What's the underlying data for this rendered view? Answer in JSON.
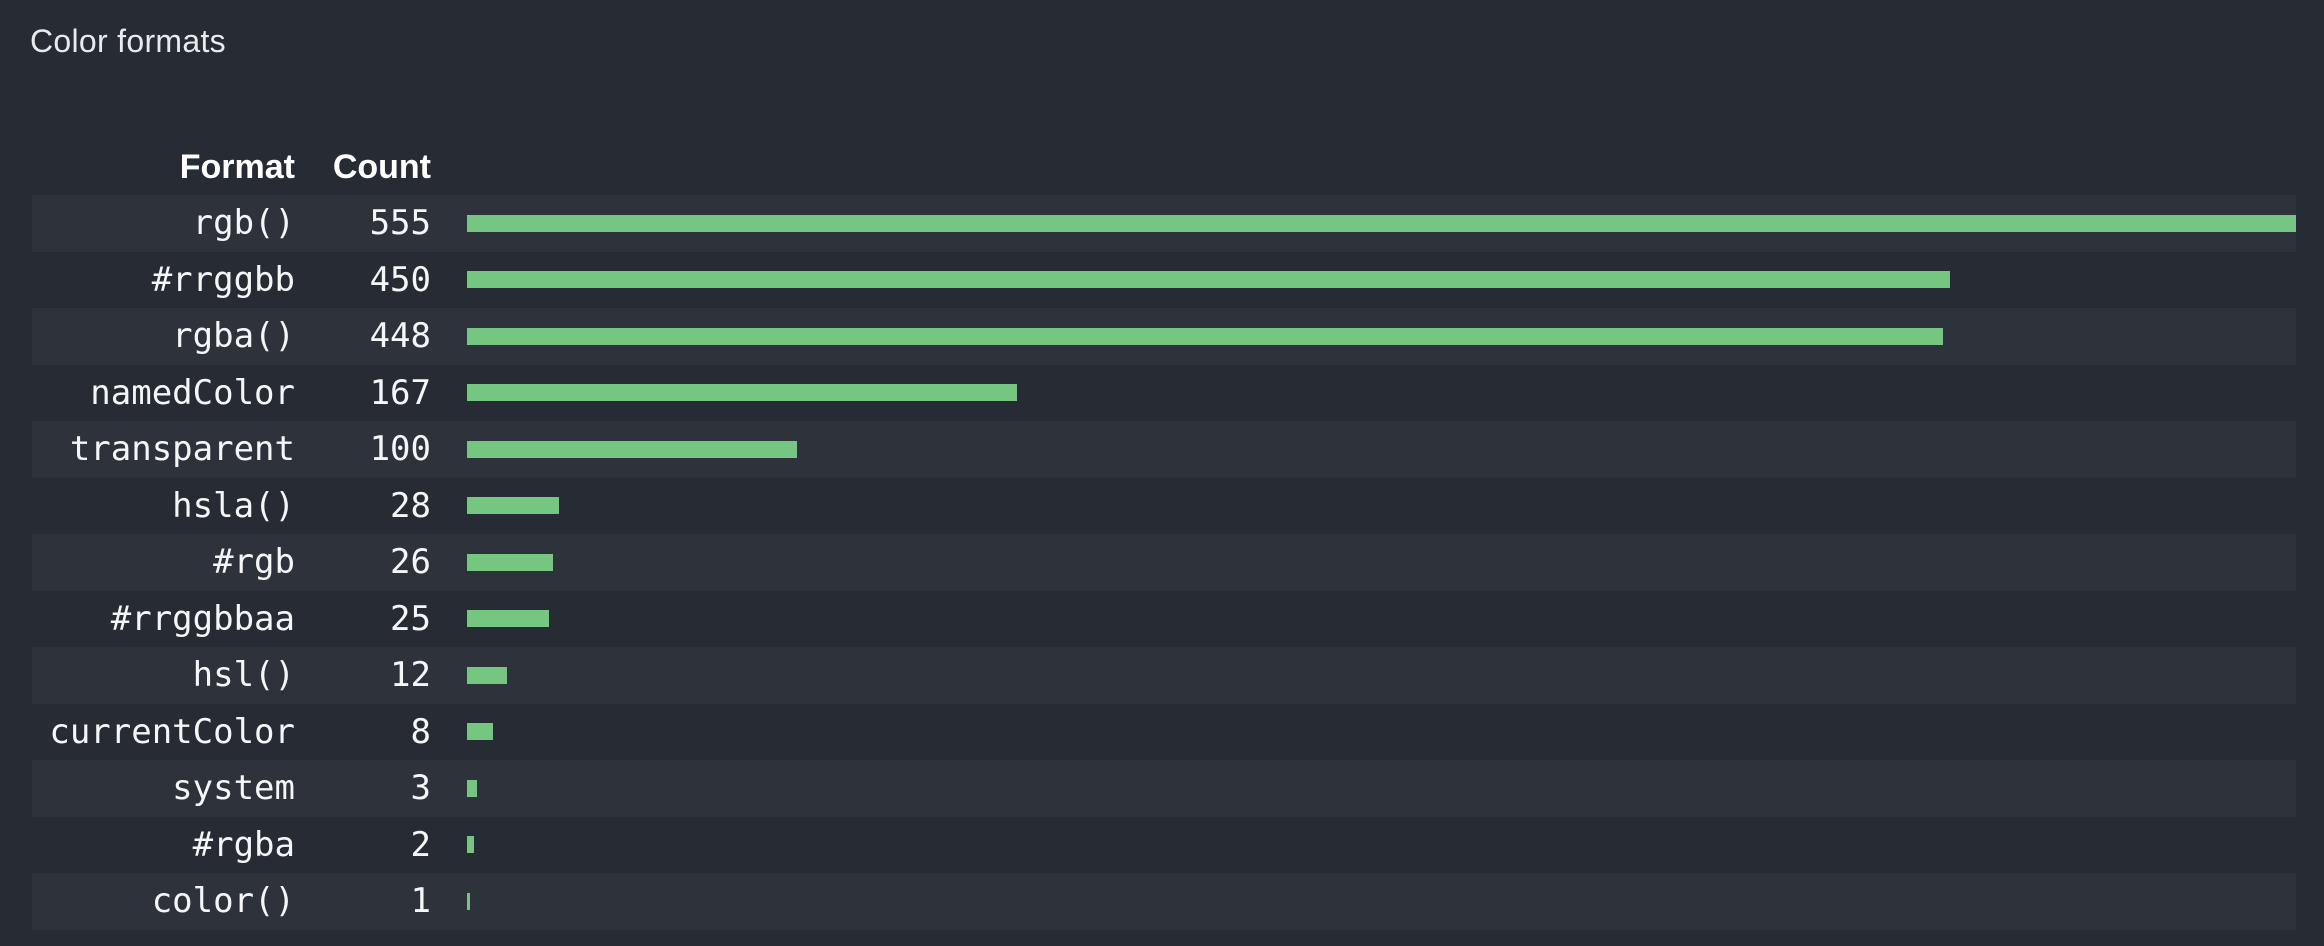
{
  "panel": {
    "title": "Color formats"
  },
  "table": {
    "columns": {
      "format": "Format",
      "count": "Count"
    },
    "rows": [
      {
        "format": "rgb()",
        "count": 555
      },
      {
        "format": "#rrggbb",
        "count": 450
      },
      {
        "format": "rgba()",
        "count": 448
      },
      {
        "format": "namedColor",
        "count": 167
      },
      {
        "format": "transparent",
        "count": 100
      },
      {
        "format": "hsla()",
        "count": 28
      },
      {
        "format": "#rgb",
        "count": 26
      },
      {
        "format": "#rrggbbaa",
        "count": 25
      },
      {
        "format": "hsl()",
        "count": 12
      },
      {
        "format": "currentColor",
        "count": 8
      },
      {
        "format": "system",
        "count": 3
      },
      {
        "format": "#rgba",
        "count": 2
      },
      {
        "format": "color()",
        "count": 1
      }
    ],
    "max_count": 555
  },
  "colors": {
    "background": "#272b33",
    "row_stripe": "#2e333b",
    "bar": "#74c681",
    "text": "#f4f6f8",
    "title_text": "#e7ebee"
  },
  "chart_data": {
    "type": "bar",
    "orientation": "horizontal",
    "title": "Color formats",
    "categories": [
      "rgb()",
      "#rrggbb",
      "rgba()",
      "namedColor",
      "transparent",
      "hsla()",
      "#rgb",
      "#rrggbbaa",
      "hsl()",
      "currentColor",
      "system",
      "#rgba",
      "color()"
    ],
    "values": [
      555,
      450,
      448,
      167,
      100,
      28,
      26,
      25,
      12,
      8,
      3,
      2,
      1
    ],
    "xlabel": "Count",
    "ylabel": "Format",
    "xlim": [
      0,
      555
    ],
    "grid": false,
    "legend": false,
    "bar_color": "#74c681"
  }
}
